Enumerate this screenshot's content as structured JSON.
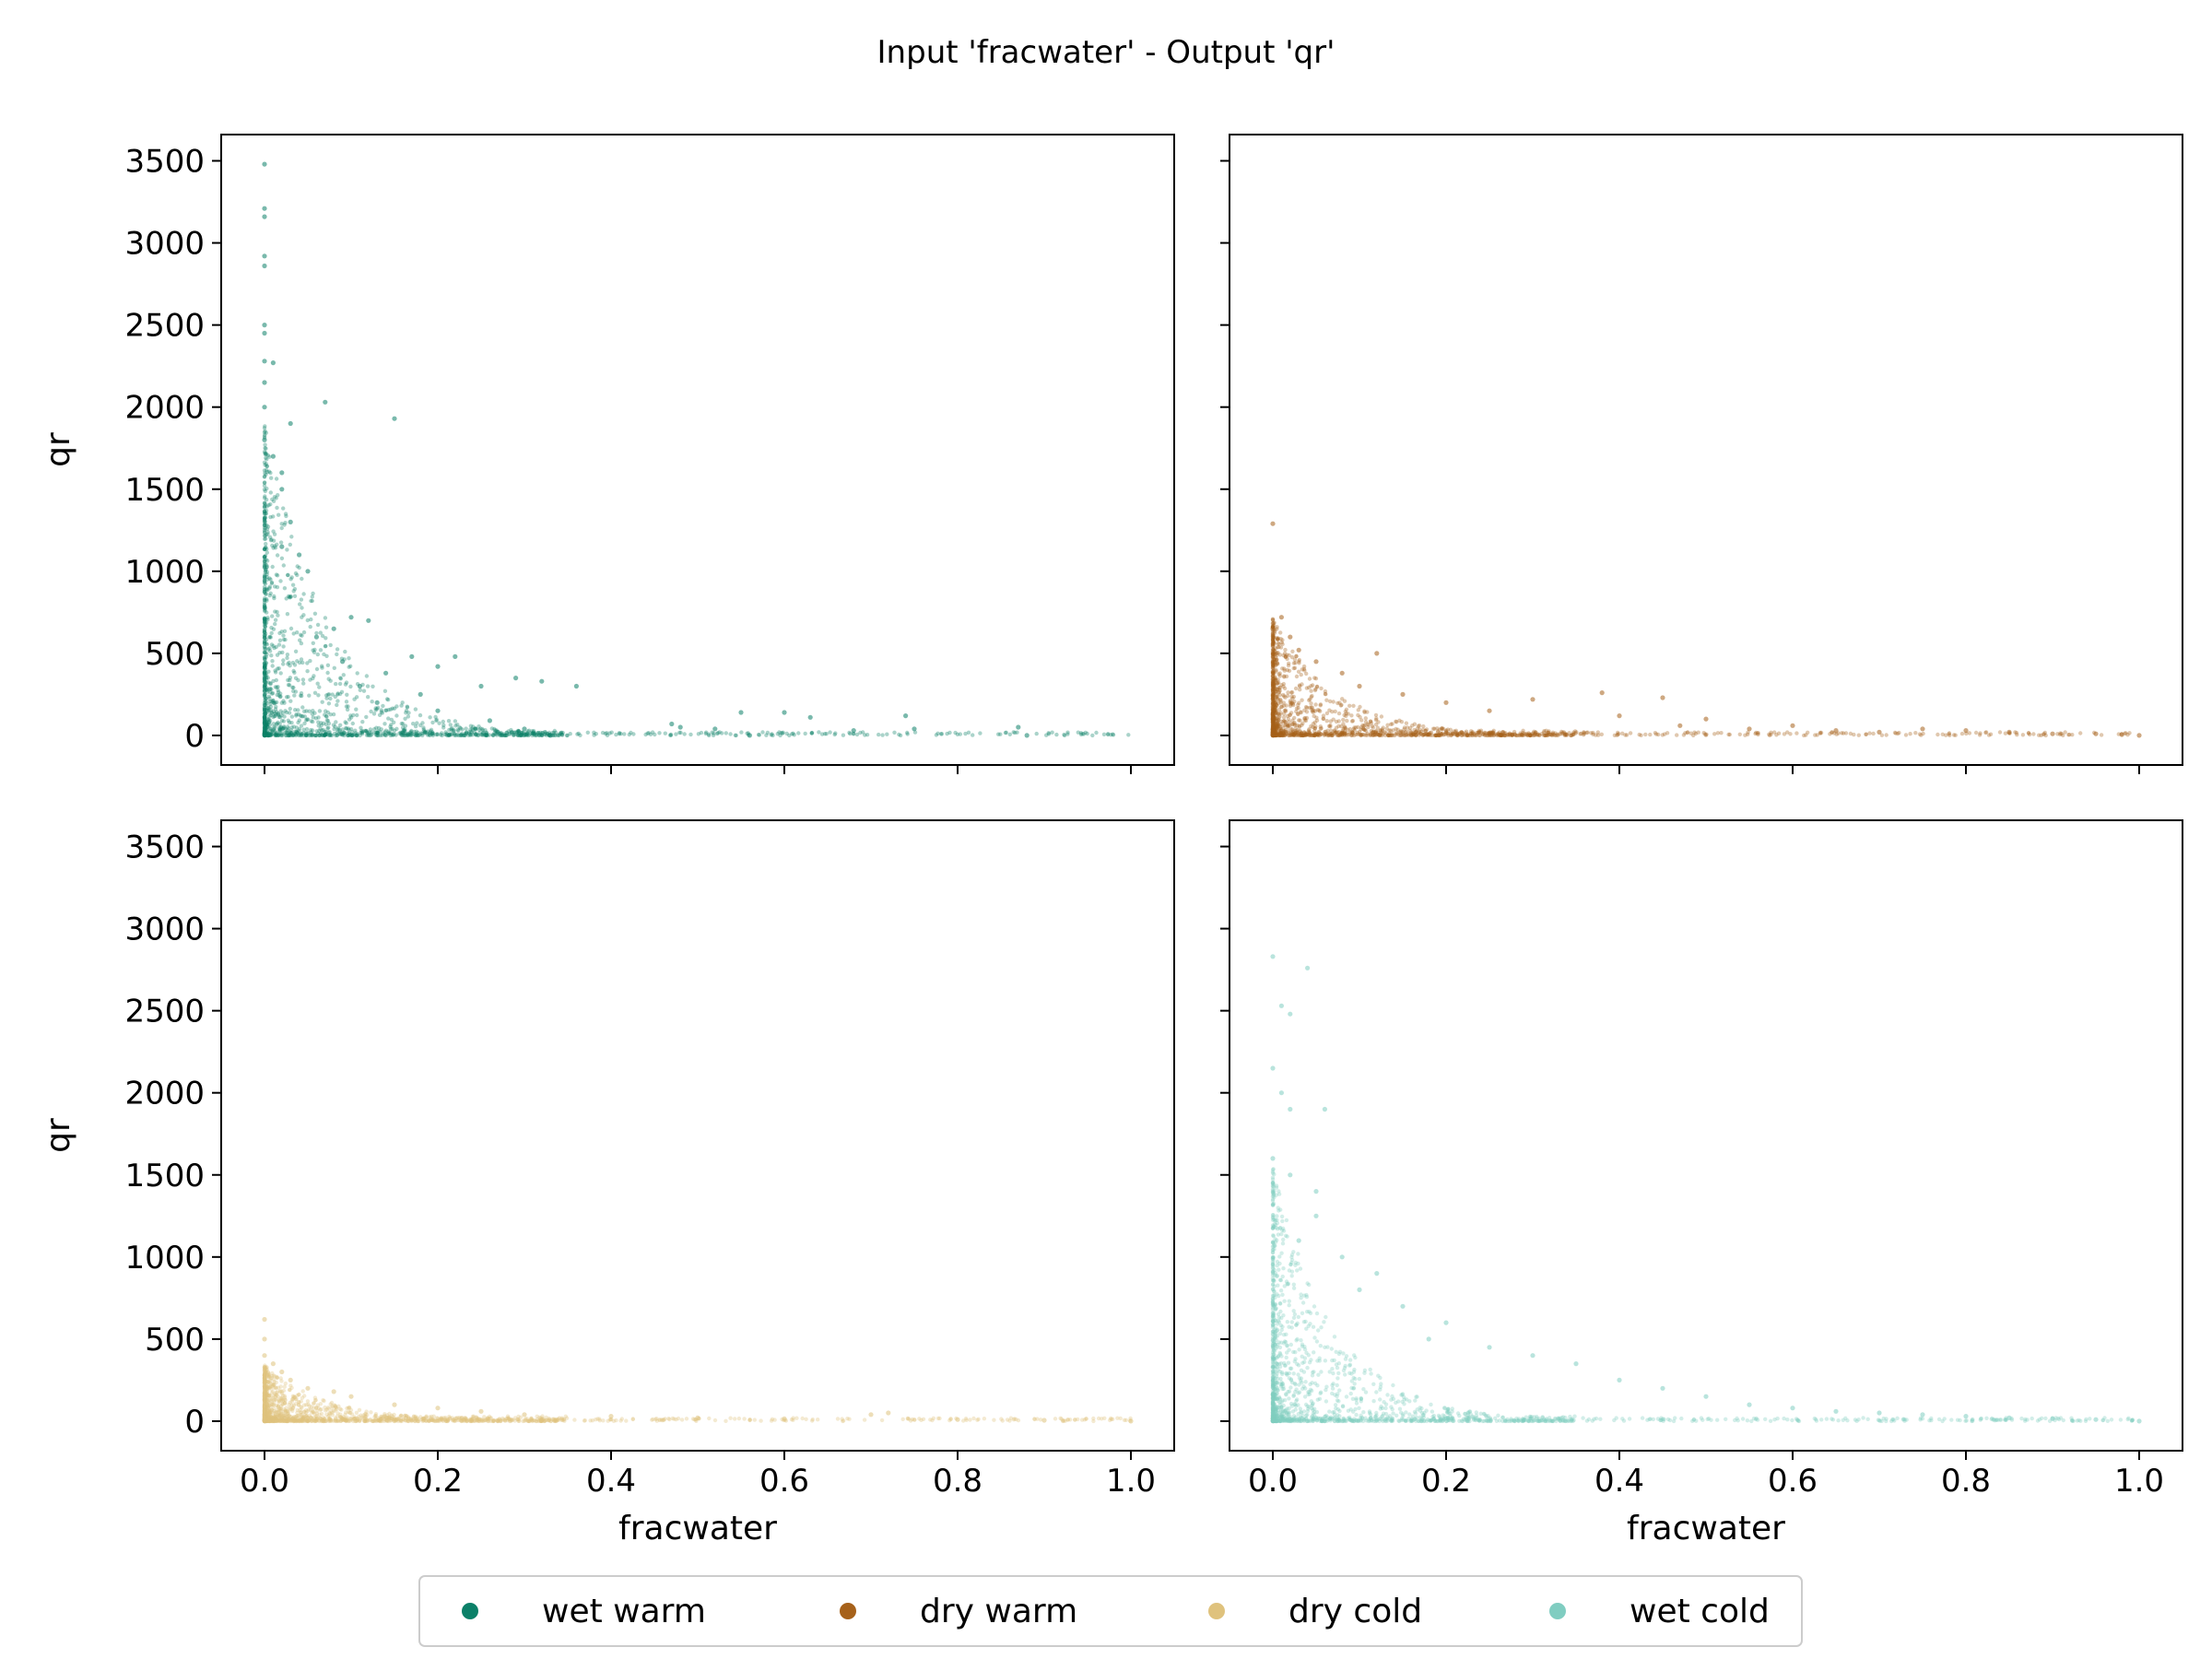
{
  "figure": {
    "title": "Input 'fracwater' - Output 'qr'"
  },
  "legend": {
    "placement": "bottom-center",
    "items": [
      {
        "label": "wet warm",
        "color": "#0b8068"
      },
      {
        "label": "dry warm",
        "color": "#a6611a"
      },
      {
        "label": "dry cold",
        "color": "#dfc27d"
      },
      {
        "label": "wet cold",
        "color": "#80cdc1"
      }
    ]
  },
  "chart_data": [
    {
      "type": "scatter",
      "panel": "top-left",
      "series": [
        {
          "name": "wet warm",
          "color": "#0b8068",
          "points": [
            [
              0.0,
              3480
            ],
            [
              0.0,
              3210
            ],
            [
              0.0,
              3160
            ],
            [
              0.0,
              2920
            ],
            [
              0.0,
              2860
            ],
            [
              0.0,
              2500
            ],
            [
              0.0,
              2450
            ],
            [
              0.0,
              2280
            ],
            [
              0.01,
              2270
            ],
            [
              0.0,
              2150
            ],
            [
              0.0,
              2000
            ],
            [
              0.07,
              2030
            ],
            [
              0.15,
              1930
            ],
            [
              0.03,
              1900
            ],
            [
              0.0,
              1800
            ],
            [
              0.01,
              1700
            ],
            [
              0.02,
              1600
            ],
            [
              0.02,
              1500
            ],
            [
              0.03,
              1300
            ],
            [
              0.02,
              1150
            ],
            [
              0.04,
              1100
            ],
            [
              0.05,
              1000
            ],
            [
              0.1,
              720
            ],
            [
              0.12,
              700
            ],
            [
              0.08,
              650
            ],
            [
              0.17,
              480
            ],
            [
              0.2,
              420
            ],
            [
              0.22,
              480
            ],
            [
              0.25,
              300
            ],
            [
              0.29,
              350
            ],
            [
              0.32,
              330
            ],
            [
              0.36,
              300
            ],
            [
              0.14,
              380
            ],
            [
              0.18,
              250
            ],
            [
              0.06,
              600
            ],
            [
              0.09,
              450
            ],
            [
              0.11,
              300
            ],
            [
              0.13,
              200
            ],
            [
              0.2,
              150
            ],
            [
              0.26,
              90
            ],
            [
              0.3,
              40
            ],
            [
              0.33,
              0
            ],
            [
              0.47,
              70
            ],
            [
              0.48,
              50
            ],
            [
              0.52,
              40
            ],
            [
              0.55,
              140
            ],
            [
              0.56,
              0
            ],
            [
              0.6,
              140
            ],
            [
              0.63,
              110
            ],
            [
              0.68,
              30
            ],
            [
              0.74,
              120
            ],
            [
              0.75,
              40
            ],
            [
              0.87,
              50
            ],
            [
              0.88,
              0
            ]
          ]
        }
      ],
      "xlabel": "",
      "ylabel": "qr",
      "xlim": [
        -0.05,
        1.05
      ],
      "ylim": [
        -180,
        3660
      ],
      "xticks": [
        0.0,
        0.2,
        0.4,
        0.6,
        0.8,
        1.0
      ],
      "yticks": [
        0,
        500,
        1000,
        1500,
        2000,
        2500,
        3000,
        3500
      ],
      "show_xticklabels": false,
      "show_yticklabels": true,
      "x_tick_labels": [
        "0.0",
        "0.2",
        "0.4",
        "0.6",
        "0.8",
        "1.0"
      ],
      "y_tick_labels": [
        "0",
        "500",
        "1000",
        "1500",
        "2000",
        "2500",
        "3000",
        "3500"
      ],
      "grid": false
    },
    {
      "type": "scatter",
      "panel": "top-right",
      "series": [
        {
          "name": "dry warm",
          "color": "#a6611a",
          "points": [
            [
              0.0,
              1290
            ],
            [
              0.01,
              720
            ],
            [
              0.0,
              650
            ],
            [
              0.02,
              600
            ],
            [
              0.03,
              520
            ],
            [
              0.05,
              450
            ],
            [
              0.08,
              380
            ],
            [
              0.12,
              500
            ],
            [
              0.1,
              300
            ],
            [
              0.15,
              250
            ],
            [
              0.2,
              200
            ],
            [
              0.25,
              150
            ],
            [
              0.3,
              220
            ],
            [
              0.38,
              260
            ],
            [
              0.4,
              120
            ],
            [
              0.45,
              230
            ],
            [
              0.47,
              60
            ],
            [
              0.5,
              100
            ],
            [
              0.55,
              40
            ],
            [
              0.6,
              60
            ],
            [
              0.65,
              30
            ],
            [
              0.7,
              20
            ],
            [
              0.75,
              40
            ],
            [
              0.8,
              30
            ],
            [
              0.85,
              20
            ],
            [
              0.9,
              10
            ],
            [
              0.95,
              10
            ],
            [
              0.98,
              5
            ],
            [
              1.0,
              0
            ]
          ]
        }
      ],
      "xlabel": "",
      "ylabel": "",
      "xlim": [
        -0.05,
        1.05
      ],
      "ylim": [
        -180,
        3660
      ],
      "xticks": [
        0.0,
        0.2,
        0.4,
        0.6,
        0.8,
        1.0
      ],
      "yticks": [
        0,
        500,
        1000,
        1500,
        2000,
        2500,
        3000,
        3500
      ],
      "show_xticklabels": false,
      "show_yticklabels": false,
      "x_tick_labels": [
        "0.0",
        "0.2",
        "0.4",
        "0.6",
        "0.8",
        "1.0"
      ],
      "y_tick_labels": [
        "0",
        "500",
        "1000",
        "1500",
        "2000",
        "2500",
        "3000",
        "3500"
      ],
      "grid": false
    },
    {
      "type": "scatter",
      "panel": "bottom-left",
      "series": [
        {
          "name": "dry cold",
          "color": "#dfc27d",
          "points": [
            [
              0.0,
              620
            ],
            [
              0.0,
              500
            ],
            [
              0.0,
              400
            ],
            [
              0.01,
              350
            ],
            [
              0.02,
              300
            ],
            [
              0.03,
              250
            ],
            [
              0.05,
              200
            ],
            [
              0.08,
              180
            ],
            [
              0.1,
              150
            ],
            [
              0.15,
              100
            ],
            [
              0.2,
              80
            ],
            [
              0.25,
              60
            ],
            [
              0.3,
              40
            ],
            [
              0.4,
              30
            ],
            [
              0.5,
              20
            ],
            [
              0.6,
              15
            ],
            [
              0.7,
              40
            ],
            [
              0.72,
              50
            ],
            [
              0.8,
              10
            ],
            [
              0.9,
              5
            ],
            [
              1.0,
              0
            ]
          ]
        }
      ],
      "xlabel": "fracwater",
      "ylabel": "qr",
      "xlim": [
        -0.05,
        1.05
      ],
      "ylim": [
        -180,
        3660
      ],
      "xticks": [
        0.0,
        0.2,
        0.4,
        0.6,
        0.8,
        1.0
      ],
      "yticks": [
        0,
        500,
        1000,
        1500,
        2000,
        2500,
        3000,
        3500
      ],
      "show_xticklabels": true,
      "show_yticklabels": true,
      "x_tick_labels": [
        "0.0",
        "0.2",
        "0.4",
        "0.6",
        "0.8",
        "1.0"
      ],
      "y_tick_labels": [
        "0",
        "500",
        "1000",
        "1500",
        "2000",
        "2500",
        "3000",
        "3500"
      ],
      "grid": false
    },
    {
      "type": "scatter",
      "panel": "bottom-right",
      "series": [
        {
          "name": "wet cold",
          "color": "#80cdc1",
          "points": [
            [
              0.0,
              2830
            ],
            [
              0.04,
              2760
            ],
            [
              0.01,
              2530
            ],
            [
              0.02,
              2480
            ],
            [
              0.0,
              2150
            ],
            [
              0.01,
              2000
            ],
            [
              0.02,
              1900
            ],
            [
              0.06,
              1900
            ],
            [
              0.0,
              1600
            ],
            [
              0.02,
              1500
            ],
            [
              0.05,
              1400
            ],
            [
              0.05,
              1250
            ],
            [
              0.03,
              1100
            ],
            [
              0.08,
              1000
            ],
            [
              0.12,
              900
            ],
            [
              0.1,
              800
            ],
            [
              0.15,
              700
            ],
            [
              0.2,
              600
            ],
            [
              0.18,
              500
            ],
            [
              0.25,
              450
            ],
            [
              0.3,
              400
            ],
            [
              0.35,
              350
            ],
            [
              0.4,
              250
            ],
            [
              0.45,
              200
            ],
            [
              0.5,
              150
            ],
            [
              0.55,
              100
            ],
            [
              0.6,
              80
            ],
            [
              0.65,
              60
            ],
            [
              0.7,
              50
            ],
            [
              0.75,
              40
            ],
            [
              0.8,
              30
            ],
            [
              0.85,
              20
            ],
            [
              0.9,
              15
            ],
            [
              0.95,
              10
            ],
            [
              1.0,
              0
            ]
          ]
        }
      ],
      "xlabel": "fracwater",
      "ylabel": "",
      "xlim": [
        -0.05,
        1.05
      ],
      "ylim": [
        -180,
        3660
      ],
      "xticks": [
        0.0,
        0.2,
        0.4,
        0.6,
        0.8,
        1.0
      ],
      "yticks": [
        0,
        500,
        1000,
        1500,
        2000,
        2500,
        3000,
        3500
      ],
      "show_xticklabels": true,
      "show_yticklabels": false,
      "x_tick_labels": [
        "0.0",
        "0.2",
        "0.4",
        "0.6",
        "0.8",
        "1.0"
      ],
      "y_tick_labels": [
        "0",
        "500",
        "1000",
        "1500",
        "2000",
        "2500",
        "3000",
        "3500"
      ],
      "grid": false
    }
  ]
}
